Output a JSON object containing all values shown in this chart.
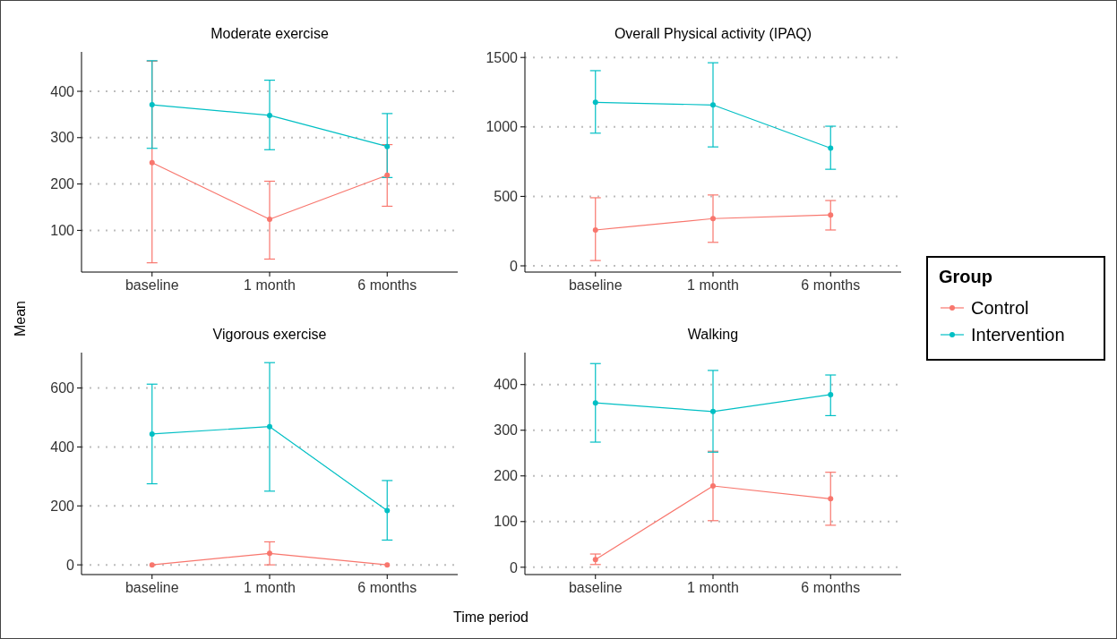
{
  "chart_data": [
    {
      "type": "line",
      "title": "Moderate exercise",
      "ylabel": "Mean",
      "legend": "right",
      "legend_title": "Group",
      "categories": [
        "baseline",
        "1 month",
        "6 months"
      ],
      "ylim": [
        10,
        485
      ],
      "yticks": [
        100,
        200,
        300,
        400
      ],
      "grid": "y",
      "marker": "circle",
      "line_style": "solid",
      "series": [
        {
          "name": "Control",
          "color": "#f8766d",
          "values": [
            246,
            124,
            219
          ],
          "errors": [
            [
              30,
              465
            ],
            [
              38,
              206
            ],
            [
              152,
              285
            ]
          ]
        },
        {
          "name": "Intervention",
          "color": "#00bfc4",
          "values": [
            371,
            348,
            281
          ],
          "errors": [
            [
              277,
              466
            ],
            [
              274,
              424
            ],
            [
              214,
              352
            ]
          ]
        }
      ]
    },
    {
      "type": "line",
      "title": "Overall Physical activity (IPAQ)",
      "categories": [
        "baseline",
        "1 month",
        "6 months"
      ],
      "ylim": [
        -45,
        1540
      ],
      "yticks": [
        0,
        500,
        1000,
        1500
      ],
      "grid": "y",
      "marker": "circle",
      "line_style": "solid",
      "series": [
        {
          "color": "#f8766d",
          "values": [
            258,
            340,
            366
          ],
          "errors": [
            [
              38,
              490
            ],
            [
              169,
              510
            ],
            [
              258,
              470
            ]
          ]
        },
        {
          "color": "#00bfc4",
          "values": [
            1177,
            1158,
            847
          ],
          "errors": [
            [
              955,
              1405
            ],
            [
              856,
              1462
            ],
            [
              695,
              1005
            ]
          ]
        }
      ]
    },
    {
      "type": "line",
      "title": "Vigorous exercise",
      "xlabel": "Time period",
      "categories": [
        "baseline",
        "1 month",
        "6 months"
      ],
      "ylim": [
        -33,
        720
      ],
      "yticks": [
        0,
        200,
        400,
        600
      ],
      "grid": "y",
      "marker": "circle",
      "line_style": "solid",
      "series": [
        {
          "color": "#f8766d",
          "values": [
            0,
            39,
            0
          ],
          "errors": [
            null,
            [
              0,
              78
            ],
            null
          ]
        },
        {
          "color": "#00bfc4",
          "values": [
            444,
            469,
            184
          ],
          "errors": [
            [
              275,
              613
            ],
            [
              250,
              686
            ],
            [
              84,
              286
            ]
          ]
        }
      ]
    },
    {
      "type": "line",
      "title": "Walking",
      "categories": [
        "baseline",
        "1 month",
        "6 months"
      ],
      "ylim": [
        -16,
        470
      ],
      "yticks": [
        0,
        100,
        200,
        300,
        400
      ],
      "grid": "y",
      "marker": "circle",
      "line_style": "solid",
      "series": [
        {
          "color": "#f8766d",
          "values": [
            17,
            178,
            150
          ],
          "errors": [
            [
              6,
              29
            ],
            [
              102,
              254
            ],
            [
              92,
              208
            ]
          ]
        },
        {
          "color": "#00bfc4",
          "values": [
            360,
            341,
            378
          ],
          "errors": [
            [
              274,
              446
            ],
            [
              252,
              431
            ],
            [
              332,
              421
            ]
          ]
        }
      ]
    }
  ]
}
